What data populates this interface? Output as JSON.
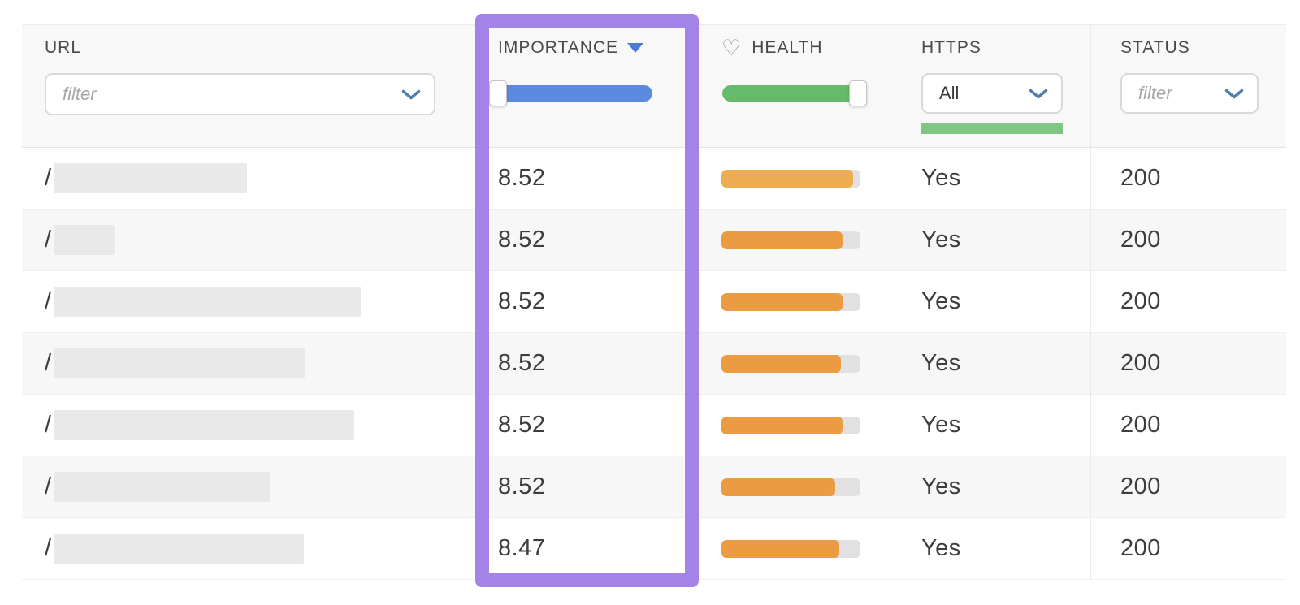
{
  "header": {
    "url": {
      "label": "URL",
      "filter_placeholder": "filter"
    },
    "importance": {
      "label": "IMPORTANCE",
      "sort": "descending"
    },
    "health": {
      "label": "HEALTH"
    },
    "https": {
      "label": "HTTPS",
      "filter_value": "All"
    },
    "status": {
      "label": "STATUS",
      "filter_placeholder": "filter"
    }
  },
  "rows": [
    {
      "url": "/",
      "url_redaction_width": 238,
      "importance": "8.52",
      "health_percent": 95,
      "health_color": "#eeac52",
      "https": "Yes",
      "status": "200"
    },
    {
      "url": "/",
      "url_redaction_width": 75,
      "importance": "8.52",
      "health_percent": 87,
      "health_color": "#eb9b41",
      "https": "Yes",
      "status": "200"
    },
    {
      "url": "/",
      "url_redaction_width": 378,
      "importance": "8.52",
      "health_percent": 87,
      "health_color": "#eb9b41",
      "https": "Yes",
      "status": "200"
    },
    {
      "url": "/",
      "url_redaction_width": 310,
      "importance": "8.52",
      "health_percent": 86,
      "health_color": "#eb9b41",
      "https": "Yes",
      "status": "200"
    },
    {
      "url": "/",
      "url_redaction_width": 370,
      "importance": "8.52",
      "health_percent": 87,
      "health_color": "#eb9b41",
      "https": "Yes",
      "status": "200"
    },
    {
      "url": "/",
      "url_redaction_width": 266,
      "importance": "8.52",
      "health_percent": 82,
      "health_color": "#eb9b41",
      "https": "Yes",
      "status": "200"
    },
    {
      "url": "/",
      "url_redaction_width": 308,
      "importance": "8.47",
      "health_percent": 85,
      "health_color": "#eb9b41",
      "https": "Yes",
      "status": "200"
    }
  ],
  "colors": {
    "highlight_border": "#a483e8",
    "importance_slider_track": "#5c8adf",
    "health_slider_track": "#66bb6a",
    "https_active_filter_bar": "#81c784",
    "sort_arrow": "#4a7bd0",
    "chevron": "#4e7dad",
    "health_bar_fill_default": "#eb9b41",
    "health_bar_fill_light": "#eeac52",
    "health_bar_track": "#e1e1e3",
    "url_redaction_block": "#e9e9e9",
    "row_stripe": "#f7f7f8"
  }
}
